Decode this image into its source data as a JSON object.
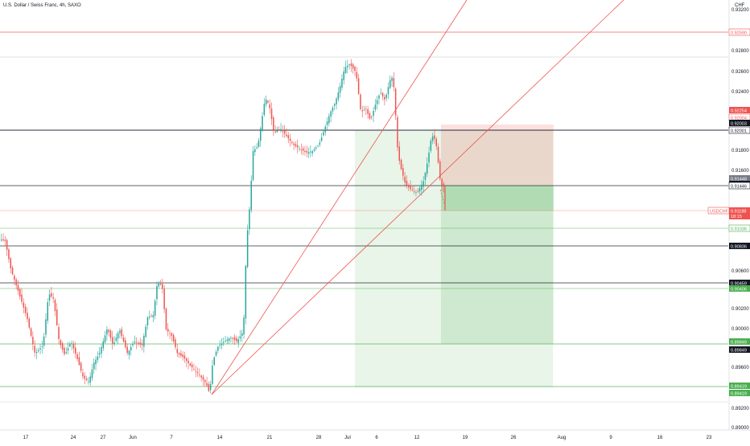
{
  "header": {
    "title": "U.S. Dollar / Swiss Franc, 4h, SAXO",
    "currency": "CHF"
  },
  "chart_data": {
    "type": "candlestick",
    "symbol": "USDCHF",
    "timeframe": "4h",
    "y_axis": {
      "position": "right",
      "range": [
        0.8896,
        0.9324
      ],
      "ticks": [
        "0.93200",
        "0.92800",
        "0.92600",
        "0.92400",
        "0.91800",
        "0.91600",
        "0.90600",
        "0.90200",
        "0.90000",
        "0.89600",
        "0.89200",
        "0.89000"
      ]
    },
    "x_axis": {
      "ticks": [
        "17",
        "24",
        "27",
        "Jun",
        "7",
        "14",
        "21",
        "28",
        "Jul",
        "6",
        "12",
        "19",
        "26",
        "Aug",
        "9",
        "16",
        "23"
      ]
    },
    "price_labels": [
      {
        "value": "0.92590",
        "style": "outline",
        "color": "#ef5350"
      },
      {
        "value": "0.92254",
        "style": "filled",
        "color": "#ef5350"
      },
      {
        "value": "0.92004",
        "style": "outline",
        "color": "#ef5350"
      },
      {
        "value": "0.92003",
        "style": "filled",
        "color": "#131722"
      },
      {
        "value": "0.92001",
        "style": "outline",
        "color": "#131722"
      },
      {
        "value": "0.91448",
        "style": "filled",
        "color": "#787b86"
      },
      {
        "value": "0.91446",
        "style": "filled",
        "color": "#131722"
      },
      {
        "value": "0.91446",
        "style": "outline",
        "color": "#131722"
      },
      {
        "value": "0.91036",
        "style": "outline",
        "color": "#4caf50"
      },
      {
        "value": "0.90836",
        "style": "filled",
        "color": "#131722"
      },
      {
        "value": "0.90459",
        "style": "filled",
        "color": "#131722"
      },
      {
        "value": "0.90406",
        "style": "filled",
        "color": "#4caf50"
      },
      {
        "value": "0.89849",
        "style": "filled",
        "color": "#4caf50"
      },
      {
        "value": "0.89849",
        "style": "filled",
        "color": "#131722"
      },
      {
        "value": "0.89419",
        "style": "filled",
        "color": "#4caf50"
      },
      {
        "value": "0.89419",
        "style": "filled",
        "color": "#4caf50"
      }
    ],
    "current_price": {
      "symbol": "USDCHF",
      "value": "0.91188",
      "countdown": "18:15",
      "color": "#ef5350"
    },
    "colors": {
      "up": "#26a69a",
      "down": "#ef5350",
      "trendline": "#ef5350",
      "profit_zone": "#4caf50",
      "loss_zone": "#ef5350"
    },
    "grid": false
  }
}
